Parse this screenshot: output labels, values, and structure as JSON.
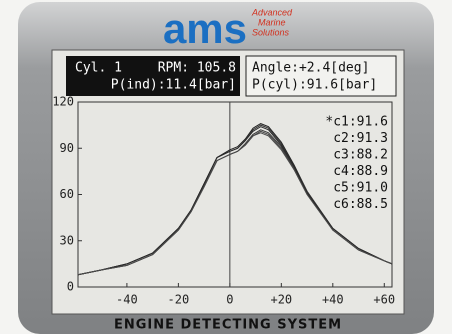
{
  "logo": {
    "brand": "ams",
    "tagline": [
      "Advanced",
      "Marine",
      "Solutions"
    ]
  },
  "footer": "ENGINE DETECTING SYSTEM",
  "chart_data": {
    "type": "line",
    "readouts": {
      "cylinder": "Cyl. 1",
      "rpm": "RPM: 105.8",
      "p_ind": "P(ind):11.4[bar]",
      "angle": "Angle:+2.4[deg]",
      "p_cyl": "P(cyl):91.6[bar]"
    },
    "x": [
      -59,
      -50,
      -40,
      -30,
      -20,
      -15,
      -10,
      -5,
      0,
      3,
      6,
      9,
      12,
      15,
      20,
      25,
      30,
      40,
      50,
      60,
      63
    ],
    "series": [
      {
        "name": "*c1:91.6",
        "color": "#222222",
        "values": [
          8,
          11,
          15,
          22,
          38,
          50,
          67,
          84,
          89,
          91,
          96,
          103,
          106,
          104,
          94,
          79,
          62,
          38,
          25,
          17,
          15
        ]
      },
      {
        "name": "c2:91.3",
        "color": "#333333",
        "values": [
          8,
          11,
          15,
          22,
          38,
          50,
          67,
          84,
          88,
          90,
          95,
          102,
          105,
          103,
          93,
          78,
          62,
          38,
          25,
          17,
          15
        ]
      },
      {
        "name": "c3:88.2",
        "color": "#444444",
        "values": [
          8,
          11,
          14,
          21,
          37,
          49,
          65,
          82,
          86,
          88,
          92,
          98,
          101,
          99,
          90,
          76,
          60,
          37,
          24,
          17,
          15
        ]
      },
      {
        "name": "c4:88.9",
        "color": "#3a3a3a",
        "values": [
          8,
          11,
          14,
          21,
          37,
          49,
          66,
          82,
          86,
          88,
          93,
          99,
          102,
          100,
          91,
          77,
          61,
          37,
          24,
          17,
          15
        ]
      },
      {
        "name": "c5:91.0",
        "color": "#2a2a2a",
        "values": [
          8,
          11,
          15,
          22,
          38,
          50,
          67,
          84,
          88,
          90,
          95,
          101,
          104,
          102,
          92,
          78,
          61,
          38,
          25,
          17,
          15
        ]
      },
      {
        "name": "c6:88.5",
        "color": "#4a4a4a",
        "values": [
          8,
          11,
          14,
          21,
          37,
          49,
          65,
          82,
          86,
          88,
          92,
          98,
          100,
          98,
          89,
          76,
          60,
          37,
          24,
          17,
          15
        ]
      }
    ],
    "xlim": [
      -59,
      63
    ],
    "xticks": [
      -40,
      -20,
      0,
      {
        "value": 20,
        "label": "+20"
      },
      {
        "value": 40,
        "label": "+40"
      },
      {
        "value": 60,
        "label": "+60"
      }
    ],
    "ylim": [
      0,
      120
    ],
    "yticks": [
      0,
      30,
      60,
      90,
      120
    ]
  }
}
